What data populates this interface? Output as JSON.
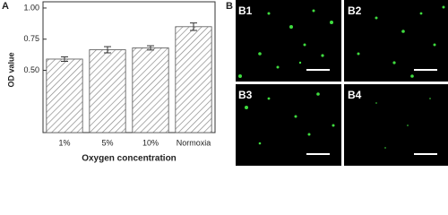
{
  "chart_data": {
    "type": "bar",
    "x_label": "Oxygen concentration",
    "y_label": "OD value",
    "categories": [
      "1%",
      "5%",
      "10%",
      "Normoxia"
    ],
    "values": [
      0.59,
      0.665,
      0.68,
      0.85
    ],
    "errors": [
      0.018,
      0.025,
      0.017,
      0.03
    ],
    "color": "#9a9a9a",
    "ylim": [
      0,
      1.05
    ],
    "yticks": [
      {
        "value": 0.5,
        "label": "0.50"
      },
      {
        "value": 0.75,
        "label": "0.75"
      },
      {
        "value": 1.0,
        "label": "1.00"
      }
    ]
  },
  "panels": {
    "a_label": "A",
    "b_label": "B",
    "images": [
      "B1",
      "B2",
      "B3",
      "B4"
    ]
  }
}
